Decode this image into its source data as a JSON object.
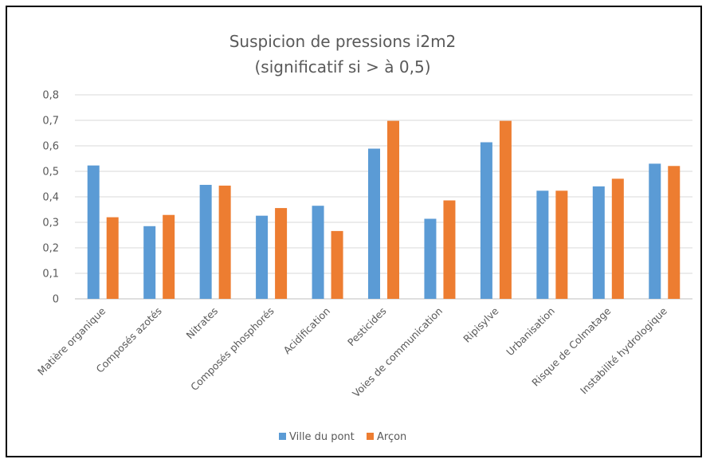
{
  "chart_data": {
    "type": "bar",
    "title": "Suspicion de pressions i2m2",
    "subtitle": "(significatif si > à 0,5)",
    "categories": [
      "Matière organique",
      "Composés azotés",
      "Nitrates",
      "Composés phosphorés",
      "Acidification",
      "Pesticides",
      "Voies de communication",
      "Ripisylve",
      "Urbanisation",
      "Risque de Colmatage",
      "Instabilité hydrologique"
    ],
    "series": [
      {
        "name": "Ville du pont",
        "color": "#5B9BD5",
        "values": [
          0.523,
          0.285,
          0.447,
          0.326,
          0.365,
          0.589,
          0.314,
          0.614,
          0.424,
          0.441,
          0.53
        ]
      },
      {
        "name": "Arçon",
        "color": "#ED7D31",
        "values": [
          0.32,
          0.329,
          0.444,
          0.356,
          0.266,
          0.698,
          0.386,
          0.698,
          0.424,
          0.471,
          0.521
        ]
      }
    ],
    "yticks": [
      "0",
      "0,1",
      "0,2",
      "0,3",
      "0,4",
      "0,5",
      "0,6",
      "0,7",
      "0,8"
    ],
    "ylim": [
      0,
      0.8
    ],
    "grid": true,
    "legend_position": "bottom"
  }
}
